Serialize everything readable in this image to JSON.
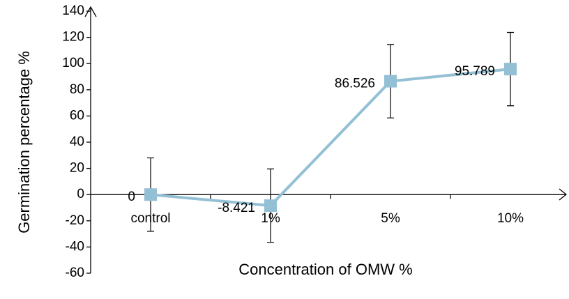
{
  "chart_data": {
    "type": "line",
    "x_label": "Concentration of OMW %",
    "y_label": "Germination percentage %",
    "categories": [
      "control",
      "1%",
      "5%",
      "10%"
    ],
    "series": [
      {
        "name": "Germination",
        "color": "#93c0d4",
        "values": [
          0,
          -8.421,
          86.526,
          95.789
        ],
        "errors": [
          28,
          28,
          28,
          28
        ]
      }
    ],
    "ylim": [
      -60,
      140
    ],
    "yticks": [
      -60,
      -40,
      -20,
      0,
      20,
      40,
      60,
      80,
      100,
      120,
      140
    ]
  }
}
